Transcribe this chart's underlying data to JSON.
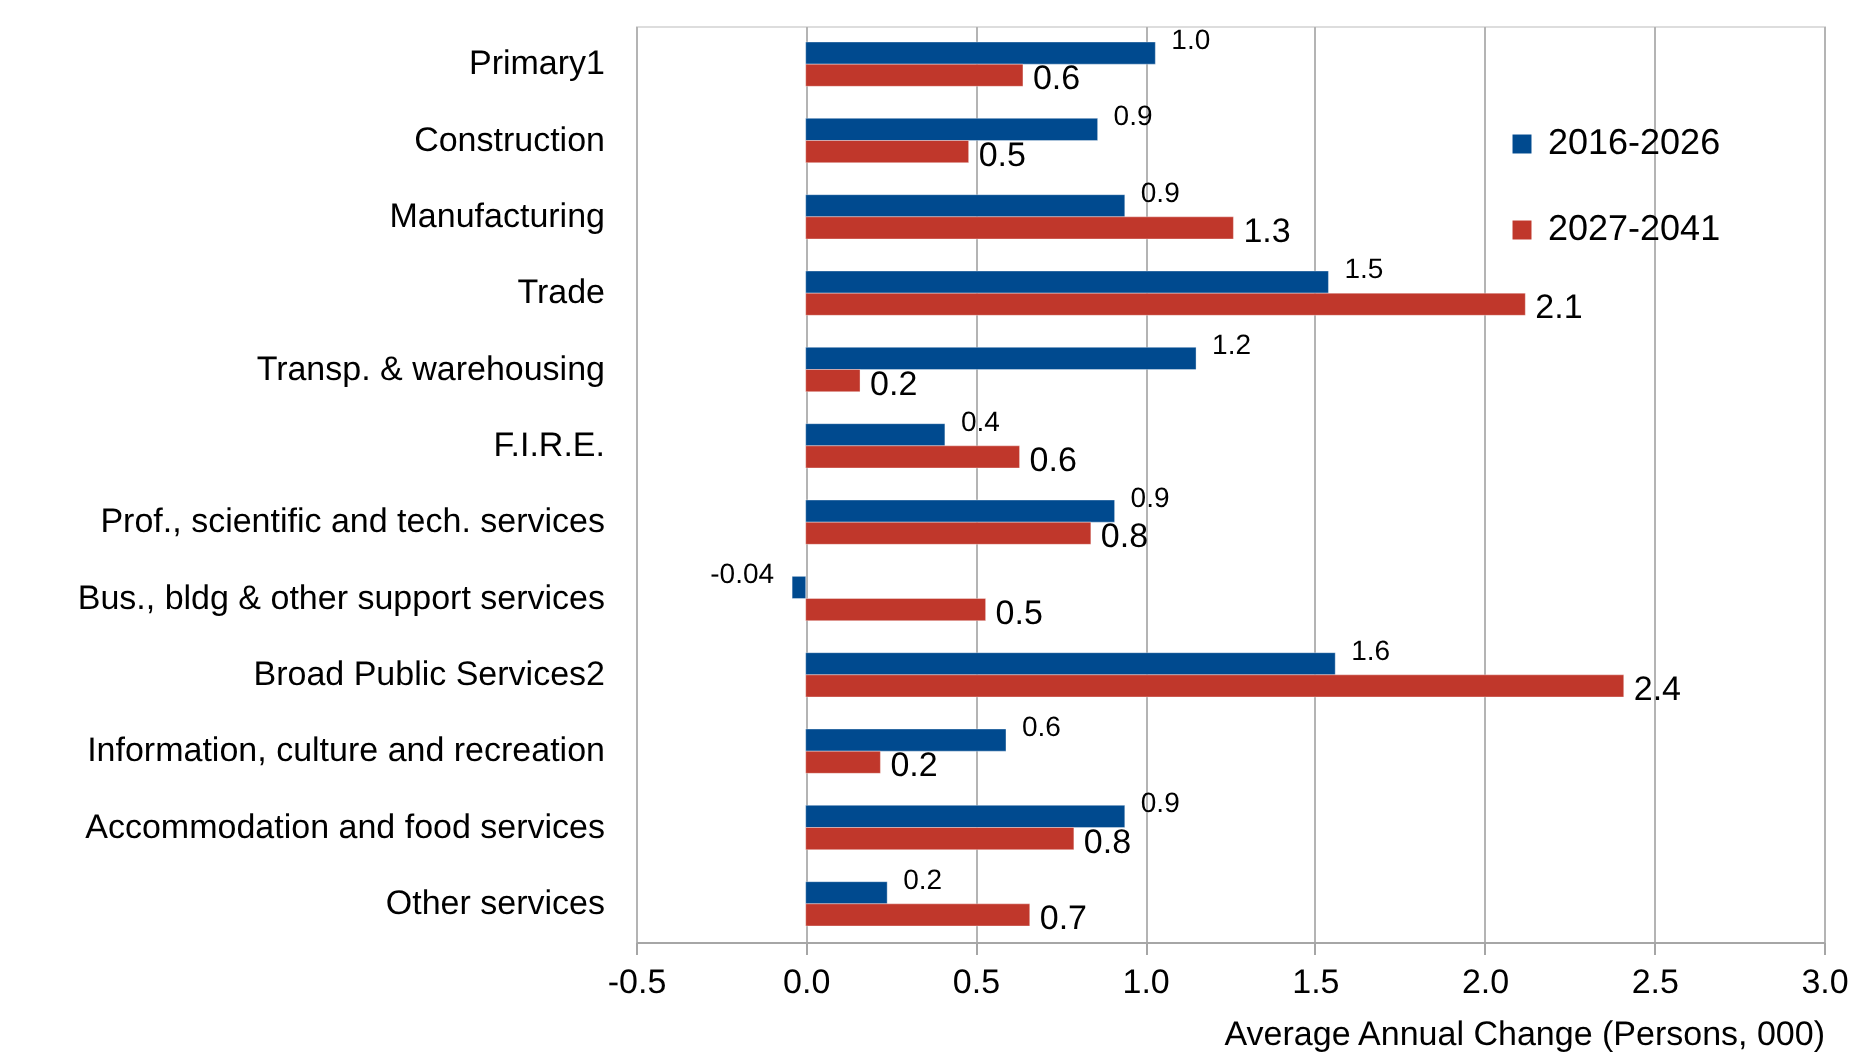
{
  "chart_data": {
    "type": "bar",
    "orientation": "horizontal",
    "categories": [
      "Primary1",
      "Construction",
      "Manufacturing",
      "Trade",
      "Transp. & warehousing",
      "F.I.R.E.",
      "Prof., scientific and tech. services",
      "Bus., bldg & other support services",
      "Broad Public Services2",
      "Information, culture and recreation",
      "Accommodation and food services",
      "Other services"
    ],
    "series": [
      {
        "name": "2016-2026",
        "color": "#004a8f",
        "values": [
          1.03,
          0.86,
          0.94,
          1.54,
          1.15,
          0.41,
          0.91,
          -0.04,
          1.56,
          0.59,
          0.94,
          0.24
        ],
        "value_labels": [
          "1.0",
          "0.9",
          "0.9",
          "1.5",
          "1.2",
          "0.4",
          "0.9",
          "-0.04",
          "1.6",
          "0.6",
          "0.9",
          "0.2"
        ]
      },
      {
        "name": "2027-2041",
        "color": "#c0372b",
        "values": [
          0.64,
          0.48,
          1.26,
          2.12,
          0.16,
          0.63,
          0.84,
          0.53,
          2.41,
          0.22,
          0.79,
          0.66
        ],
        "value_labels": [
          "0.6",
          "0.5",
          "1.3",
          "2.1",
          "0.2",
          "0.6",
          "0.8",
          "0.5",
          "2.4",
          "0.2",
          "0.8",
          "0.7"
        ]
      }
    ],
    "xlabel": "Average Annual Change (Persons, 000)",
    "xlim": [
      -0.5,
      3.0
    ],
    "xticks": [
      -0.5,
      {
        "value": 0,
        "label": "0.0"
      },
      0.5,
      {
        "value": 1,
        "label": "1.0"
      },
      1.5,
      {
        "value": 2,
        "label": "2.0"
      },
      2.5,
      {
        "value": 3,
        "label": "3.0"
      }
    ],
    "grid": "x",
    "legend": "top right"
  }
}
